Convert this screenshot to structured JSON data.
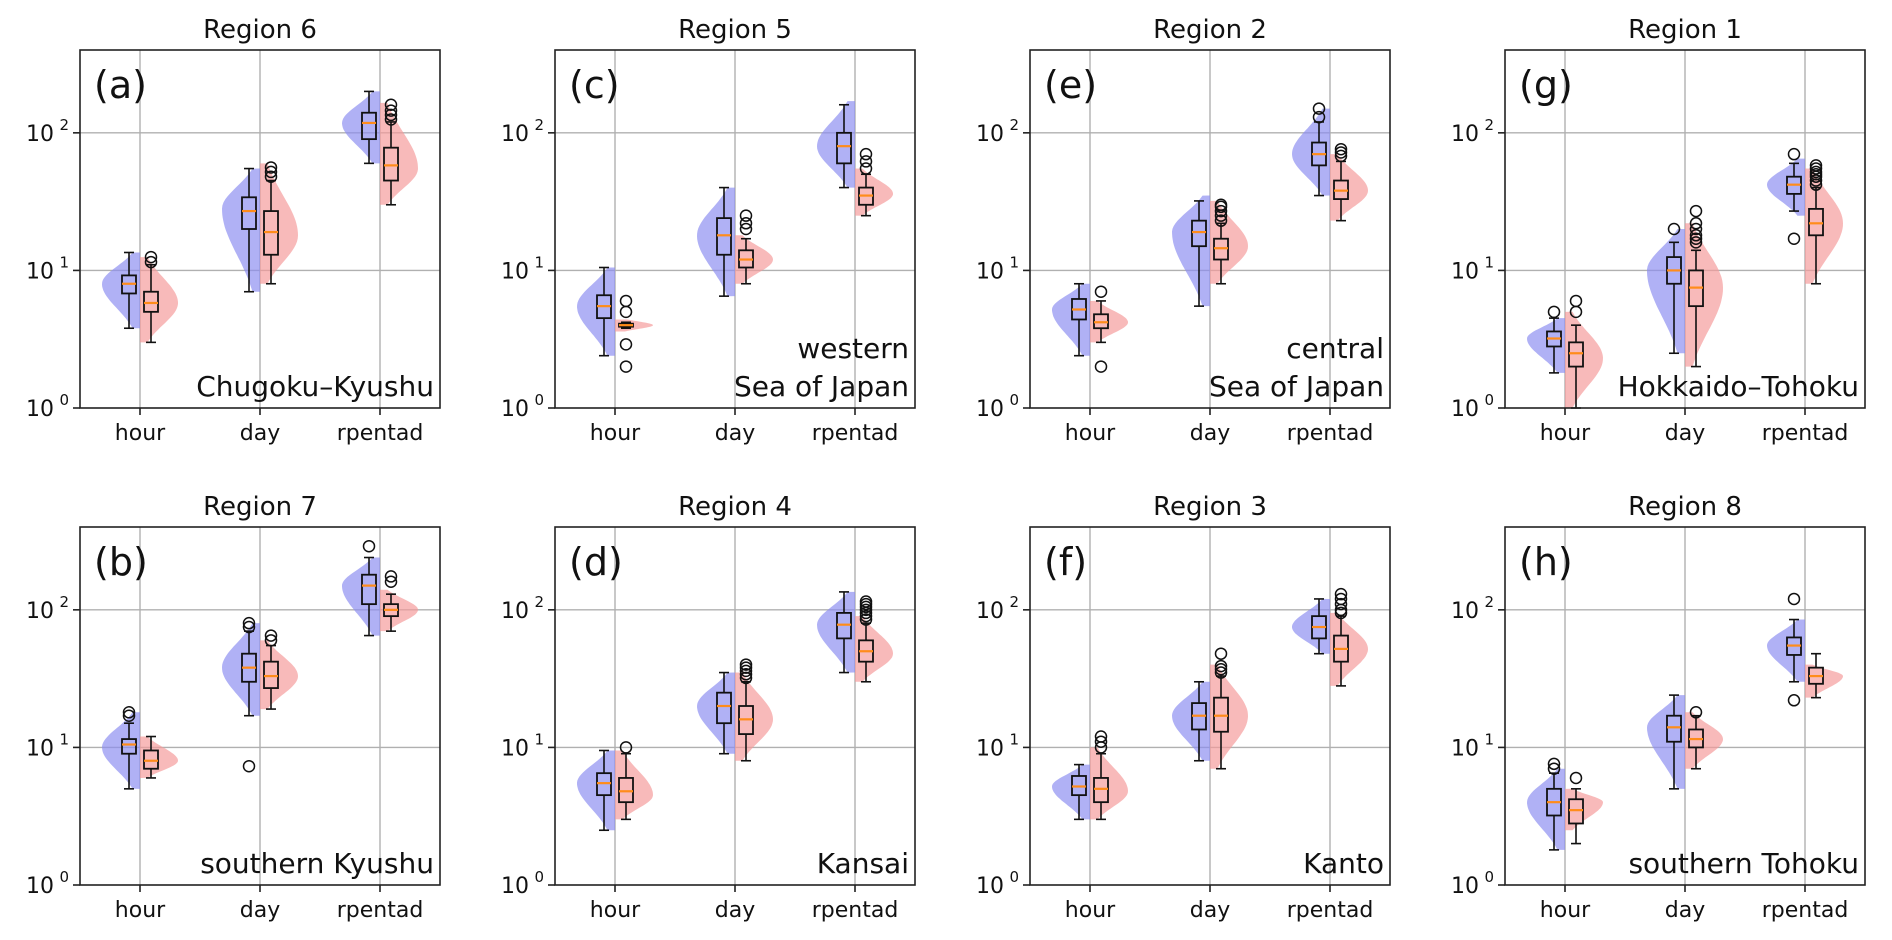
{
  "colors": {
    "historical": "#8a8cf0",
    "future": "#f59a9a",
    "median": "#ff8c1a"
  },
  "chart_data": {
    "type": "violin+box",
    "yscale": "log",
    "ylim": [
      1,
      400
    ],
    "yticks": [
      {
        "base": "10",
        "exp": "0"
      },
      {
        "base": "10",
        "exp": "1"
      },
      {
        "base": "10",
        "exp": "2"
      }
    ],
    "categories": [
      "hour",
      "day",
      "rpentad"
    ],
    "panels": [
      {
        "title": "Region 6",
        "letter": "(a)",
        "label_lines": [
          "Chugoku–Kyushu"
        ],
        "row": 0,
        "col": 0,
        "stats": [
          [
            {
              "whislo": 3.8,
              "q1": 6.8,
              "med": 8,
              "q3": 9.2,
              "whishi": 13.5,
              "fliers": [],
              "vlo": 3.8,
              "vhi": 13.5,
              "mode": 8
            },
            {
              "whislo": 3,
              "q1": 5,
              "med": 5.8,
              "q3": 7,
              "whishi": 11,
              "fliers": [
                11.5,
                12.5
              ],
              "vlo": 3,
              "vhi": 12.5,
              "mode": 5.8
            }
          ],
          [
            {
              "whislo": 7,
              "q1": 20,
              "med": 27,
              "q3": 34,
              "whishi": 55,
              "fliers": [],
              "vlo": 7,
              "vhi": 55,
              "mode": 28
            },
            {
              "whislo": 8,
              "q1": 13,
              "med": 19,
              "q3": 27,
              "whishi": 45,
              "fliers": [
                48,
                52,
                56
              ],
              "vlo": 8,
              "vhi": 60,
              "mode": 18
            }
          ],
          [
            {
              "whislo": 60,
              "q1": 90,
              "med": 118,
              "q3": 140,
              "whishi": 200,
              "fliers": [],
              "vlo": 60,
              "vhi": 200,
              "mode": 118
            },
            {
              "whislo": 30,
              "q1": 45,
              "med": 58,
              "q3": 78,
              "whishi": 120,
              "fliers": [
                125,
                135,
                145,
                160
              ],
              "vlo": 30,
              "vhi": 165,
              "mode": 55
            }
          ]
        ]
      },
      {
        "title": "Region 5",
        "letter": "(c)",
        "label_lines": [
          "western",
          "Sea of Japan"
        ],
        "row": 0,
        "col": 1,
        "stats": [
          [
            {
              "whislo": 2.4,
              "q1": 4.5,
              "med": 5.5,
              "q3": 6.6,
              "whishi": 10.5,
              "fliers": [],
              "vlo": 2.4,
              "vhi": 10.5,
              "mode": 5.5
            },
            {
              "whislo": 3.8,
              "q1": 3.9,
              "med": 4,
              "q3": 4.1,
              "whishi": 4.2,
              "fliers": [
                2,
                2.9,
                5,
                6
              ],
              "vlo": 3.6,
              "vhi": 4.4,
              "mode": 4
            }
          ],
          [
            {
              "whislo": 6.5,
              "q1": 13,
              "med": 18,
              "q3": 24,
              "whishi": 40,
              "fliers": [],
              "vlo": 6.5,
              "vhi": 40,
              "mode": 18
            },
            {
              "whislo": 8,
              "q1": 10.5,
              "med": 12,
              "q3": 14,
              "whishi": 17,
              "fliers": [
                20,
                22,
                25
              ],
              "vlo": 8,
              "vhi": 18,
              "mode": 12
            }
          ],
          [
            {
              "whislo": 40,
              "q1": 60,
              "med": 80,
              "q3": 100,
              "whishi": 160,
              "fliers": [],
              "vlo": 40,
              "vhi": 170,
              "mode": 80
            },
            {
              "whislo": 25,
              "q1": 30,
              "med": 35,
              "q3": 40,
              "whishi": 50,
              "fliers": [
                55,
                62,
                70
              ],
              "vlo": 25,
              "vhi": 55,
              "mode": 36
            }
          ]
        ]
      },
      {
        "title": "Region 2",
        "letter": "(e)",
        "label_lines": [
          "central",
          "Sea of Japan"
        ],
        "row": 0,
        "col": 2,
        "stats": [
          [
            {
              "whislo": 2.4,
              "q1": 4.4,
              "med": 5.2,
              "q3": 6.2,
              "whishi": 8,
              "fliers": [],
              "vlo": 2.4,
              "vhi": 8,
              "mode": 5.2
            },
            {
              "whislo": 3,
              "q1": 3.8,
              "med": 4.2,
              "q3": 4.8,
              "whishi": 6,
              "fliers": [
                2,
                7
              ],
              "vlo": 3,
              "vhi": 6,
              "mode": 4.2
            }
          ],
          [
            {
              "whislo": 5.5,
              "q1": 15,
              "med": 19,
              "q3": 23,
              "whishi": 32,
              "fliers": [],
              "vlo": 5.5,
              "vhi": 35,
              "mode": 19
            },
            {
              "whislo": 8,
              "q1": 12,
              "med": 14.5,
              "q3": 17,
              "whishi": 22,
              "fliers": [
                23,
                25,
                27,
                29,
                30
              ],
              "vlo": 8,
              "vhi": 32,
              "mode": 15
            }
          ],
          [
            {
              "whislo": 35,
              "q1": 58,
              "med": 70,
              "q3": 85,
              "whishi": 120,
              "fliers": [
                130,
                150
              ],
              "vlo": 35,
              "vhi": 150,
              "mode": 70
            },
            {
              "whislo": 23,
              "q1": 33,
              "med": 38,
              "q3": 45,
              "whishi": 62,
              "fliers": [
                68,
                72,
                76
              ],
              "vlo": 23,
              "vhi": 70,
              "mode": 38
            }
          ]
        ]
      },
      {
        "title": "Region 1",
        "letter": "(g)",
        "label_lines": [
          "Hokkaido–Tohoku"
        ],
        "row": 0,
        "col": 3,
        "stats": [
          [
            {
              "whislo": 1.8,
              "q1": 2.8,
              "med": 3.2,
              "q3": 3.6,
              "whishi": 4.5,
              "fliers": [
                5
              ],
              "vlo": 1.8,
              "vhi": 4.5,
              "mode": 3.2
            },
            {
              "whislo": 1,
              "q1": 2,
              "med": 2.5,
              "q3": 3,
              "whishi": 4,
              "fliers": [
                5,
                6
              ],
              "vlo": 1,
              "vhi": 5,
              "mode": 2.3
            }
          ],
          [
            {
              "whislo": 2.5,
              "q1": 8,
              "med": 10,
              "q3": 12.5,
              "whishi": 16,
              "fliers": [
                20
              ],
              "vlo": 2.5,
              "vhi": 20,
              "mode": 10
            },
            {
              "whislo": 2,
              "q1": 5.5,
              "med": 7.5,
              "q3": 10,
              "whishi": 14,
              "fliers": [
                16,
                17,
                18,
                20,
                22,
                27
              ],
              "vlo": 2,
              "vhi": 22,
              "mode": 7.5
            }
          ],
          [
            {
              "whislo": 27,
              "q1": 36,
              "med": 42,
              "q3": 48,
              "whishi": 60,
              "fliers": [
                17,
                70
              ],
              "vlo": 25,
              "vhi": 65,
              "mode": 42
            },
            {
              "whislo": 8,
              "q1": 18,
              "med": 22,
              "q3": 28,
              "whishi": 40,
              "fliers": [
                42,
                45,
                48,
                50,
                52,
                55,
                58
              ],
              "vlo": 8,
              "vhi": 55,
              "mode": 22
            }
          ]
        ]
      },
      {
        "title": "Region 7",
        "letter": "(b)",
        "label_lines": [
          "southern Kyushu"
        ],
        "row": 1,
        "col": 0,
        "stats": [
          [
            {
              "whislo": 5,
              "q1": 9,
              "med": 10.5,
              "q3": 11.5,
              "whishi": 15,
              "fliers": [
                17,
                18
              ],
              "vlo": 5,
              "vhi": 18,
              "mode": 10
            },
            {
              "whislo": 6,
              "q1": 7,
              "med": 8,
              "q3": 9.5,
              "whishi": 12,
              "fliers": [],
              "vlo": 6,
              "vhi": 12,
              "mode": 8
            }
          ],
          [
            {
              "whislo": 17,
              "q1": 30,
              "med": 38,
              "q3": 48,
              "whishi": 70,
              "fliers": [
                7.3,
                75,
                80
              ],
              "vlo": 17,
              "vhi": 80,
              "mode": 38
            },
            {
              "whislo": 19,
              "q1": 27,
              "med": 33,
              "q3": 42,
              "whishi": 55,
              "fliers": [
                60,
                65
              ],
              "vlo": 19,
              "vhi": 60,
              "mode": 33
            }
          ],
          [
            {
              "whislo": 65,
              "q1": 110,
              "med": 150,
              "q3": 180,
              "whishi": 240,
              "fliers": [
                290
              ],
              "vlo": 65,
              "vhi": 240,
              "mode": 150
            },
            {
              "whislo": 70,
              "q1": 90,
              "med": 100,
              "q3": 110,
              "whishi": 130,
              "fliers": [
                160,
                175
              ],
              "vlo": 70,
              "vhi": 140,
              "mode": 100
            }
          ]
        ]
      },
      {
        "title": "Region 4",
        "letter": "(d)",
        "label_lines": [
          "Kansai"
        ],
        "row": 1,
        "col": 1,
        "stats": [
          [
            {
              "whislo": 2.5,
              "q1": 4.5,
              "med": 5.5,
              "q3": 6.5,
              "whishi": 9.5,
              "fliers": [],
              "vlo": 2.5,
              "vhi": 9.5,
              "mode": 5.5
            },
            {
              "whislo": 3,
              "q1": 4,
              "med": 4.8,
              "q3": 6,
              "whishi": 9,
              "fliers": [
                10
              ],
              "vlo": 3,
              "vhi": 9.5,
              "mode": 4.5
            }
          ],
          [
            {
              "whislo": 9,
              "q1": 15,
              "med": 20,
              "q3": 25,
              "whishi": 35,
              "fliers": [],
              "vlo": 9,
              "vhi": 35,
              "mode": 20
            },
            {
              "whislo": 8,
              "q1": 12.5,
              "med": 16,
              "q3": 20,
              "whishi": 30,
              "fliers": [
                32,
                34,
                36,
                38,
                40
              ],
              "vlo": 8,
              "vhi": 35,
              "mode": 16
            }
          ],
          [
            {
              "whislo": 35,
              "q1": 62,
              "med": 78,
              "q3": 95,
              "whishi": 135,
              "fliers": [],
              "vlo": 35,
              "vhi": 135,
              "mode": 78
            },
            {
              "whislo": 30,
              "q1": 42,
              "med": 50,
              "q3": 60,
              "whishi": 80,
              "fliers": [
                85,
                90,
                95,
                100,
                105,
                110,
                115
              ],
              "vlo": 30,
              "vhi": 90,
              "mode": 48
            }
          ]
        ]
      },
      {
        "title": "Region 3",
        "letter": "(f)",
        "label_lines": [
          "Kanto"
        ],
        "row": 1,
        "col": 2,
        "stats": [
          [
            {
              "whislo": 3,
              "q1": 4.5,
              "med": 5.2,
              "q3": 6.2,
              "whishi": 7.5,
              "fliers": [],
              "vlo": 3,
              "vhi": 7.5,
              "mode": 5.2
            },
            {
              "whislo": 3,
              "q1": 4,
              "med": 5,
              "q3": 6,
              "whishi": 9,
              "fliers": [
                10,
                11,
                12
              ],
              "vlo": 3,
              "vhi": 10,
              "mode": 4.8
            }
          ],
          [
            {
              "whislo": 8,
              "q1": 13.5,
              "med": 17,
              "q3": 21,
              "whishi": 30,
              "fliers": [],
              "vlo": 8,
              "vhi": 30,
              "mode": 17
            },
            {
              "whislo": 7,
              "q1": 13,
              "med": 17,
              "q3": 23,
              "whishi": 33,
              "fliers": [
                35,
                37,
                39,
                48
              ],
              "vlo": 7,
              "vhi": 40,
              "mode": 17
            }
          ],
          [
            {
              "whislo": 48,
              "q1": 62,
              "med": 75,
              "q3": 90,
              "whishi": 120,
              "fliers": [],
              "vlo": 48,
              "vhi": 120,
              "mode": 75
            },
            {
              "whislo": 28,
              "q1": 42,
              "med": 52,
              "q3": 65,
              "whishi": 90,
              "fliers": [
                95,
                100,
                110,
                120,
                130
              ],
              "vlo": 28,
              "vhi": 95,
              "mode": 52
            }
          ]
        ]
      },
      {
        "title": "Region 8",
        "letter": "(h)",
        "label_lines": [
          "southern Tohoku"
        ],
        "row": 1,
        "col": 3,
        "stats": [
          [
            {
              "whislo": 1.8,
              "q1": 3.2,
              "med": 4,
              "q3": 5,
              "whishi": 6.5,
              "fliers": [
                7,
                7.6
              ],
              "vlo": 1.8,
              "vhi": 7,
              "mode": 4
            },
            {
              "whislo": 2,
              "q1": 2.8,
              "med": 3.5,
              "q3": 4.2,
              "whishi": 5,
              "fliers": [
                6
              ],
              "vlo": 2.5,
              "vhi": 5,
              "mode": 4
            }
          ],
          [
            {
              "whislo": 5,
              "q1": 11,
              "med": 14,
              "q3": 17,
              "whishi": 24,
              "fliers": [],
              "vlo": 5,
              "vhi": 24,
              "mode": 14
            },
            {
              "whislo": 7,
              "q1": 10,
              "med": 11.5,
              "q3": 13.5,
              "whishi": 17,
              "fliers": [
                18
              ],
              "vlo": 7,
              "vhi": 18,
              "mode": 11.5
            }
          ],
          [
            {
              "whislo": 30,
              "q1": 47,
              "med": 55,
              "q3": 63,
              "whishi": 85,
              "fliers": [
                22,
                120
              ],
              "vlo": 30,
              "vhi": 85,
              "mode": 55
            },
            {
              "whislo": 23,
              "q1": 29,
              "med": 33,
              "q3": 38,
              "whishi": 48,
              "fliers": [],
              "vlo": 23,
              "vhi": 40,
              "mode": 33
            }
          ]
        ]
      }
    ]
  }
}
